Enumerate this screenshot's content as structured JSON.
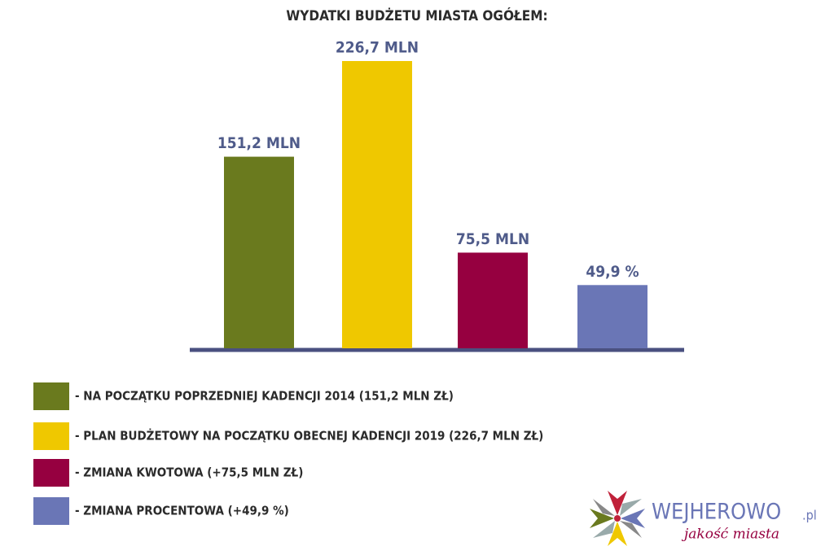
{
  "chart_data": {
    "type": "bar",
    "title": "WYDATKI BUDŻETU MIASTA OGÓŁEM:",
    "categories": [
      "- NA POCZĄTKU POPRZEDNIEJ KADENCJI 2014  (151,2 MLN ZŁ)",
      "- PLAN BUDŻETOWY NA POCZĄTKU OBECNEJ KADENCJI 2019  (226,7 MLN ZŁ)",
      "- ZMIANA KWOTOWA  (+75,5 MLN ZŁ)",
      "- ZMIANA PROCENTOWA  (+49,9 %)"
    ],
    "values": [
      151.2,
      226.7,
      75.5,
      49.9
    ],
    "value_labels": [
      "151,2 MLN",
      "226,7 MLN",
      "75,5 MLN",
      "49,9 %"
    ],
    "colors": [
      "#6a7a1e",
      "#efc800",
      "#960040",
      "#6a76b6"
    ]
  },
  "logo": {
    "name": "WEJHEROWO",
    "suffix": ".pl",
    "tagline": "jakość miasta"
  }
}
